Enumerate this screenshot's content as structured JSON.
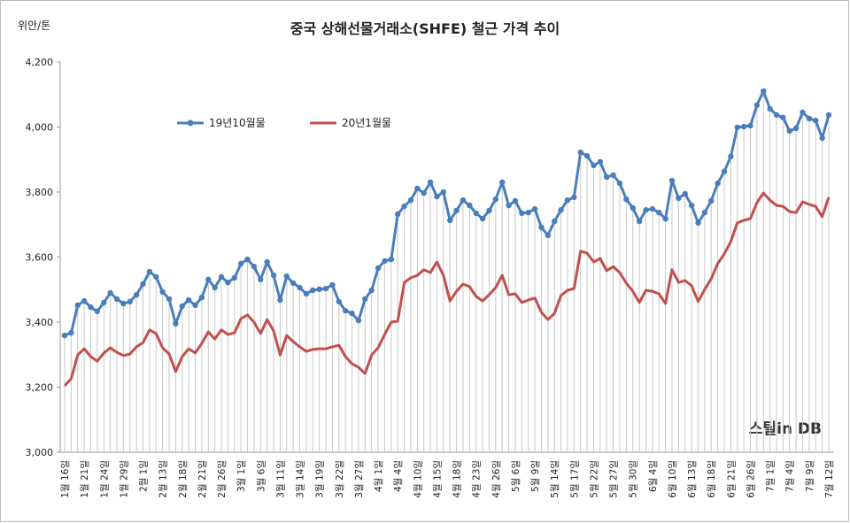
{
  "chart_data": {
    "type": "line",
    "title": "중국 상해선물거래소(SHFE) 철근 가격 추이",
    "y_unit": "위안/톤",
    "watermark": "스틸in DB",
    "categories": [
      "1월 16일",
      null,
      null,
      "1월 21일",
      null,
      null,
      "1월 24일",
      null,
      null,
      "1월 29일",
      null,
      null,
      "2월 1일",
      null,
      null,
      "2월 13일",
      null,
      null,
      "2월 18일",
      null,
      null,
      "2월 21일",
      null,
      null,
      "2월 26일",
      null,
      null,
      "3월 1일",
      null,
      null,
      "3월 6일",
      null,
      null,
      "3월 11일",
      null,
      null,
      "3월 14일",
      null,
      null,
      "3월 19일",
      null,
      null,
      "3월 22일",
      null,
      null,
      "3월 27일",
      null,
      null,
      "4월 1일",
      null,
      null,
      "4월 4일",
      null,
      null,
      "4월 10일",
      null,
      null,
      "4월 15일",
      null,
      null,
      "4월 18일",
      null,
      null,
      "4월 23일",
      null,
      null,
      "4월 26일",
      null,
      null,
      "5월 6일",
      null,
      null,
      "5월 9일",
      null,
      null,
      "5월 14일",
      null,
      null,
      "5월 17일",
      null,
      null,
      "5월 22일",
      null,
      null,
      "5월 27일",
      null,
      null,
      "5월 30일",
      null,
      null,
      "6월 4일",
      null,
      null,
      "6월 10일",
      null,
      null,
      "6월 13일",
      null,
      null,
      "6월 18일",
      null,
      null,
      "6월 21일",
      null,
      null,
      "6월 26일",
      null,
      null,
      "7월 1일",
      null,
      null,
      "7월 4일",
      null,
      null,
      "7월 9일",
      null,
      null,
      "7월 12일"
    ],
    "series": [
      {
        "name": "19년10월물",
        "color": "#4a7ebb",
        "values": [
          3359,
          3367,
          3452,
          3465,
          3446,
          3433,
          3460,
          3490,
          3471,
          3457,
          3463,
          3484,
          3517,
          3555,
          3539,
          3493,
          3471,
          3395,
          3449,
          3468,
          3452,
          3476,
          3531,
          3506,
          3539,
          3522,
          3536,
          3580,
          3593,
          3571,
          3531,
          3585,
          3544,
          3468,
          3541,
          3520,
          3506,
          3487,
          3498,
          3501,
          3503,
          3514,
          3463,
          3435,
          3427,
          3405,
          3471,
          3498,
          3566,
          3588,
          3593,
          3732,
          3756,
          3775,
          3811,
          3797,
          3830,
          3786,
          3800,
          3713,
          3743,
          3775,
          3759,
          3735,
          3718,
          3743,
          3778,
          3830,
          3759,
          3773,
          3735,
          3737,
          3748,
          3691,
          3667,
          3710,
          3745,
          3775,
          3784,
          3922,
          3911,
          3882,
          3893,
          3846,
          3852,
          3827,
          3778,
          3751,
          3710,
          3745,
          3748,
          3737,
          3718,
          3835,
          3781,
          3795,
          3759,
          3705,
          3737,
          3773,
          3827,
          3863,
          3909,
          3999,
          4001,
          4004,
          4067,
          4110,
          4056,
          4037,
          4029,
          3988,
          3996,
          4045,
          4026,
          4020,
          3966,
          4037
        ]
      },
      {
        "name": "20년1월물",
        "color": "#c0504d",
        "values": [
          3204,
          3226,
          3299,
          3318,
          3294,
          3280,
          3305,
          3321,
          3307,
          3297,
          3302,
          3324,
          3337,
          3376,
          3365,
          3321,
          3302,
          3248,
          3294,
          3318,
          3305,
          3335,
          3370,
          3348,
          3376,
          3362,
          3367,
          3411,
          3422,
          3400,
          3365,
          3408,
          3373,
          3299,
          3359,
          3340,
          3324,
          3310,
          3316,
          3318,
          3318,
          3324,
          3329,
          3294,
          3272,
          3261,
          3242,
          3299,
          3321,
          3362,
          3400,
          3403,
          3522,
          3536,
          3544,
          3561,
          3552,
          3585,
          3544,
          3465,
          3495,
          3517,
          3509,
          3479,
          3465,
          3484,
          3506,
          3544,
          3484,
          3487,
          3460,
          3468,
          3474,
          3430,
          3408,
          3427,
          3482,
          3498,
          3503,
          3618,
          3612,
          3585,
          3596,
          3558,
          3571,
          3552,
          3520,
          3495,
          3460,
          3498,
          3495,
          3487,
          3457,
          3561,
          3522,
          3528,
          3512,
          3463,
          3501,
          3533,
          3580,
          3610,
          3648,
          3705,
          3713,
          3718,
          3767,
          3797,
          3775,
          3759,
          3756,
          3740,
          3737,
          3770,
          3762,
          3756,
          3724,
          3784
        ]
      }
    ],
    "ylim": [
      3000,
      4200
    ],
    "yticks": [
      {
        "value": 3000,
        "label": "3,000"
      },
      {
        "value": 3200,
        "label": "3,200"
      },
      {
        "value": 3400,
        "label": "3,400"
      },
      {
        "value": 3600,
        "label": "3,600"
      },
      {
        "value": 3800,
        "label": "3,800"
      },
      {
        "value": 4000,
        "label": "4,000"
      },
      {
        "value": 4200,
        "label": "4,200"
      }
    ],
    "drop_lines": true
  }
}
